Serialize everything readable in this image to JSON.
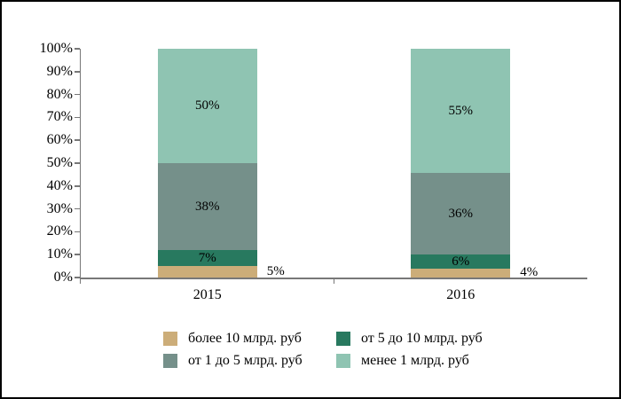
{
  "chart_data": {
    "type": "bar",
    "variant": "stacked-column-percent",
    "title": "",
    "xlabel": "",
    "ylabel": "",
    "categories": [
      "2015",
      "2016"
    ],
    "series": [
      {
        "name": "более 10 млрд. руб",
        "color": "#ccad79",
        "values": [
          5,
          4
        ],
        "label_position": "outside-right"
      },
      {
        "name": "от 5 до 10 млрд. руб",
        "color": "#28795f",
        "values": [
          7,
          6
        ],
        "label_position": "inside-center"
      },
      {
        "name": "от 1 до 5 млрд. руб",
        "color": "#75908a",
        "values": [
          38,
          36
        ],
        "label_position": "inside-center"
      },
      {
        "name": "менее 1 млрд. руб",
        "color": "#8fc4b2",
        "values": [
          50,
          55
        ],
        "label_position": "inside-center"
      }
    ],
    "data_label_format": "percent",
    "y_axis": {
      "min": 0,
      "max": 100,
      "step": 10,
      "tick_labels": [
        "0%",
        "10%",
        "20%",
        "30%",
        "40%",
        "50%",
        "60%",
        "70%",
        "80%",
        "90%",
        "100%"
      ]
    },
    "gridlines": false,
    "legend": {
      "position": "bottom",
      "columns": 2
    },
    "colors": {
      "axis": "#787878",
      "text": "#000000",
      "background": "#ffffff",
      "frame_border": "#000000"
    }
  }
}
